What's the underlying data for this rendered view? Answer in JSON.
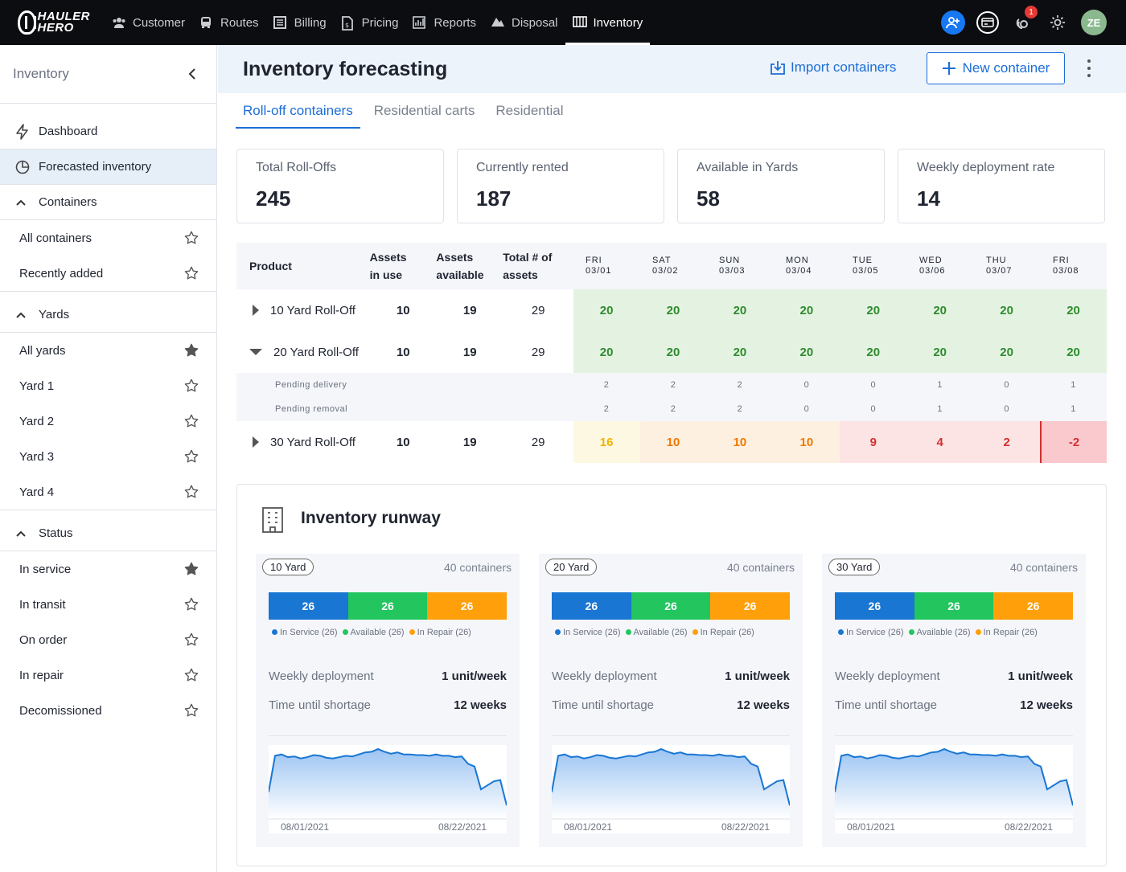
{
  "nav": {
    "logo_line1": "HAULER",
    "logo_line2": "HERO",
    "items": [
      {
        "label": "Customer",
        "icon": "users-icon"
      },
      {
        "label": "Routes",
        "icon": "truck-icon"
      },
      {
        "label": "Billing",
        "icon": "billing-icon"
      },
      {
        "label": "Pricing",
        "icon": "pricing-icon"
      },
      {
        "label": "Reports",
        "icon": "reports-icon"
      },
      {
        "label": "Disposal",
        "icon": "disposal-icon"
      },
      {
        "label": "Inventory",
        "icon": "inventory-icon"
      }
    ],
    "active": "Inventory",
    "notification_count": "1",
    "avatar_initials": "ZE"
  },
  "sidebar": {
    "title": "Inventory",
    "top_items": [
      {
        "label": "Dashboard",
        "icon": "lightning-icon"
      },
      {
        "label": "Forecasted inventory",
        "icon": "pie-chart-icon",
        "selected": true
      }
    ],
    "groups": [
      {
        "label": "Containers",
        "items": [
          {
            "label": "All containers",
            "starred": false
          },
          {
            "label": "Recently added",
            "starred": false
          }
        ]
      },
      {
        "label": "Yards",
        "items": [
          {
            "label": "All yards",
            "starred": true
          },
          {
            "label": "Yard 1",
            "starred": false
          },
          {
            "label": "Yard 2",
            "starred": false
          },
          {
            "label": "Yard 3",
            "starred": false
          },
          {
            "label": "Yard 4",
            "starred": false
          }
        ]
      },
      {
        "label": "Status",
        "items": [
          {
            "label": "In service",
            "starred": true
          },
          {
            "label": "In transit",
            "starred": false
          },
          {
            "label": "On order",
            "starred": false
          },
          {
            "label": "In repair",
            "starred": false
          },
          {
            "label": "Decomissioned",
            "starred": false
          }
        ]
      }
    ]
  },
  "header": {
    "title": "Inventory forecasting",
    "import_label": "Import containers",
    "new_label": "New container"
  },
  "tabs": [
    {
      "label": "Roll-off containers",
      "active": true
    },
    {
      "label": "Residential carts",
      "active": false
    },
    {
      "label": "Residential",
      "active": false
    }
  ],
  "stats": [
    {
      "label": "Total Roll-Offs",
      "value": "245"
    },
    {
      "label": "Currently rented",
      "value": "187"
    },
    {
      "label": "Available in Yards",
      "value": "58"
    },
    {
      "label": "Weekly deployment rate",
      "value": "14"
    }
  ],
  "table": {
    "headers": {
      "product": "Product",
      "in_use_1": "Assets",
      "in_use_2": "in use",
      "available_1": "Assets",
      "available_2": "available",
      "total_1": "Total # of",
      "total_2": "assets"
    },
    "days": [
      {
        "dow": "FRI",
        "date": "03/01"
      },
      {
        "dow": "SAT",
        "date": "03/02"
      },
      {
        "dow": "SUN",
        "date": "03/03"
      },
      {
        "dow": "MON",
        "date": "03/04"
      },
      {
        "dow": "TUE",
        "date": "03/05"
      },
      {
        "dow": "WED",
        "date": "03/06"
      },
      {
        "dow": "THU",
        "date": "03/07"
      },
      {
        "dow": "FRI",
        "date": "03/08"
      }
    ],
    "rows": [
      {
        "product": "10 Yard Roll-Off",
        "expanded": false,
        "in_use": "10",
        "available": "19",
        "total": "29",
        "forecast": [
          "20",
          "20",
          "20",
          "20",
          "20",
          "20",
          "20",
          "20"
        ]
      },
      {
        "product": "20 Yard Roll-Off",
        "expanded": true,
        "in_use": "10",
        "available": "19",
        "total": "29",
        "forecast": [
          "20",
          "20",
          "20",
          "20",
          "20",
          "20",
          "20",
          "20"
        ],
        "subrows": [
          {
            "label": "Pending delivery",
            "values": [
              "2",
              "2",
              "2",
              "0",
              "0",
              "1",
              "0",
              "1"
            ]
          },
          {
            "label": "Pending removal",
            "values": [
              "2",
              "2",
              "2",
              "0",
              "0",
              "1",
              "0",
              "1"
            ]
          }
        ]
      },
      {
        "product": "30 Yard Roll-Off",
        "expanded": false,
        "in_use": "10",
        "available": "19",
        "total": "29",
        "forecast": [
          "16",
          "10",
          "10",
          "10",
          "9",
          "4",
          "2",
          "-2"
        ],
        "colors": [
          {
            "bg": "#fdf8e1",
            "fg": "#f0b400"
          },
          {
            "bg": "#fdf0e0",
            "fg": "#f07800"
          },
          {
            "bg": "#fdf0e0",
            "fg": "#f07800"
          },
          {
            "bg": "#fdf0e0",
            "fg": "#f07800"
          },
          {
            "bg": "#fce4e4",
            "fg": "#d32f2f"
          },
          {
            "bg": "#fce4e4",
            "fg": "#d32f2f"
          },
          {
            "bg": "#fce4e4",
            "fg": "#d32f2f"
          },
          {
            "bg": "#f9c9cd",
            "fg": "#d32f2f"
          }
        ]
      }
    ]
  },
  "runway": {
    "title": "Inventory runway",
    "cards": [
      {
        "size": "10 Yard",
        "count": "40 containers"
      },
      {
        "size": "20 Yard",
        "count": "40 containers"
      },
      {
        "size": "30 Yard",
        "count": "40 containers"
      }
    ],
    "bar_values": [
      "26",
      "26",
      "26"
    ],
    "bar_colors": [
      "#1976d2",
      "#22c55e",
      "#ff9f0a"
    ],
    "legend": [
      "In Service (26)",
      "Available (26)",
      "In Repair (26)"
    ],
    "weekly_label": "Weekly deployment",
    "weekly_value": "1 unit/week",
    "shortage_label": "Time until shortage",
    "shortage_value": "12 weeks",
    "date_start": "08/01/2021",
    "date_end": "08/22/2021",
    "spark_values": [
      40,
      94,
      96,
      92,
      93,
      90,
      92,
      95,
      94,
      91,
      90,
      92,
      94,
      93,
      96,
      99,
      100,
      104,
      100,
      97,
      99,
      96,
      96,
      95,
      95,
      94,
      96,
      94,
      94,
      92,
      93,
      82,
      78,
      44,
      50,
      56,
      58,
      20
    ]
  }
}
